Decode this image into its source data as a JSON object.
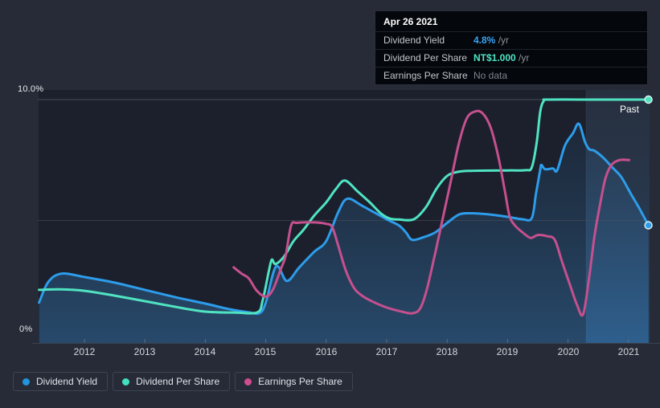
{
  "page": {
    "background": "#262b37"
  },
  "tooltip": {
    "date": "Apr 26 2021",
    "rows": [
      {
        "label": "Dividend Yield",
        "value": "4.8%",
        "suffix": " /yr",
        "color": "#3aa4f6"
      },
      {
        "label": "Dividend Per Share",
        "value": "NT$1.000",
        "suffix": " /yr",
        "color": "#4fe4c5"
      },
      {
        "label": "Earnings Per Share",
        "value": "No data",
        "suffix": "",
        "color": "#7e848e"
      }
    ]
  },
  "legend": {
    "items": [
      {
        "label": "Dividend Yield",
        "color": "#2196dd"
      },
      {
        "label": "Dividend Per Share",
        "color": "#43dfc0"
      },
      {
        "label": "Earnings Per Share",
        "color": "#cf4d8e"
      }
    ]
  },
  "chart_data": {
    "type": "line",
    "y_axis": {
      "min": 0,
      "max": 10,
      "max_label": "10.0%",
      "min_label": "0%",
      "unit": "percent",
      "gridlines_at": [
        5,
        10
      ]
    },
    "x_axis": {
      "unit": "year",
      "ticks": [
        2012,
        2013,
        2014,
        2015,
        2016,
        2017,
        2018,
        2019,
        2020,
        2021
      ]
    },
    "x_tick_labels": [
      "2012",
      "2013",
      "2014",
      "2015",
      "2016",
      "2017",
      "2018",
      "2019",
      "2020",
      "2021"
    ],
    "x_range": [
      2011.25,
      2021.33
    ],
    "past_label": "Past",
    "past_region_start_year": 2020.3,
    "legend_position": "bottom-left",
    "note": "All series plotted on shared 0-10% axis; Dividend Per Share scaled so 10% = NT$1.000/yr",
    "series": [
      {
        "id": "dividend-yield",
        "name": "Dividend Yield",
        "color": "#2d9cea",
        "end_dot": true,
        "end_value_label": "4.8% /yr",
        "points": [
          [
            2011.25,
            1.6
          ],
          [
            2011.4,
            2.45
          ],
          [
            2011.62,
            2.8
          ],
          [
            2012,
            2.66
          ],
          [
            2012.5,
            2.43
          ],
          [
            2013,
            2.13
          ],
          [
            2013.5,
            1.83
          ],
          [
            2014,
            1.56
          ],
          [
            2014.4,
            1.33
          ],
          [
            2014.72,
            1.2
          ],
          [
            2014.9,
            1.17
          ],
          [
            2015.0,
            1.6
          ],
          [
            2015.17,
            3.1
          ],
          [
            2015.35,
            2.5
          ],
          [
            2015.55,
            3.05
          ],
          [
            2015.8,
            3.7
          ],
          [
            2016,
            4.15
          ],
          [
            2016.2,
            5.35
          ],
          [
            2016.35,
            5.9
          ],
          [
            2016.6,
            5.6
          ],
          [
            2017,
            5.05
          ],
          [
            2017.2,
            4.8
          ],
          [
            2017.32,
            4.5
          ],
          [
            2017.42,
            4.2
          ],
          [
            2017.6,
            4.3
          ],
          [
            2017.8,
            4.5
          ],
          [
            2018,
            4.9
          ],
          [
            2018.2,
            5.25
          ],
          [
            2018.4,
            5.3
          ],
          [
            2018.7,
            5.25
          ],
          [
            2019,
            5.15
          ],
          [
            2019.25,
            5.05
          ],
          [
            2019.4,
            5.1
          ],
          [
            2019.47,
            6.1
          ],
          [
            2019.54,
            7.1
          ],
          [
            2019.56,
            7.3
          ],
          [
            2019.62,
            7.12
          ],
          [
            2019.75,
            7.15
          ],
          [
            2019.82,
            7.08
          ],
          [
            2019.95,
            8.1
          ],
          [
            2020.08,
            8.6
          ],
          [
            2020.18,
            9.0
          ],
          [
            2020.28,
            8.25
          ],
          [
            2020.35,
            7.95
          ],
          [
            2020.44,
            7.88
          ],
          [
            2020.58,
            7.6
          ],
          [
            2020.75,
            7.15
          ],
          [
            2020.88,
            6.8
          ],
          [
            2021.05,
            6.05
          ],
          [
            2021.18,
            5.5
          ],
          [
            2021.33,
            4.8
          ]
        ]
      },
      {
        "id": "dividend-per-share",
        "name": "Dividend Per Share",
        "color": "#50e3c2",
        "end_dot": true,
        "end_value_label": "NT$1.000 /yr",
        "points": [
          [
            2011.25,
            2.13
          ],
          [
            2011.6,
            2.15
          ],
          [
            2012,
            2.09
          ],
          [
            2012.5,
            1.89
          ],
          [
            2013,
            1.66
          ],
          [
            2013.5,
            1.43
          ],
          [
            2014,
            1.23
          ],
          [
            2014.5,
            1.19
          ],
          [
            2014.86,
            1.2
          ],
          [
            2014.95,
            1.7
          ],
          [
            2015.05,
            2.9
          ],
          [
            2015.1,
            3.38
          ],
          [
            2015.16,
            3.2
          ],
          [
            2015.3,
            3.5
          ],
          [
            2015.46,
            4.15
          ],
          [
            2015.62,
            4.6
          ],
          [
            2015.8,
            5.2
          ],
          [
            2016,
            5.75
          ],
          [
            2016.16,
            6.3
          ],
          [
            2016.31,
            6.65
          ],
          [
            2016.52,
            6.2
          ],
          [
            2016.72,
            5.75
          ],
          [
            2016.9,
            5.3
          ],
          [
            2017.05,
            5.08
          ],
          [
            2017.2,
            5.04
          ],
          [
            2017.45,
            5.05
          ],
          [
            2017.65,
            5.55
          ],
          [
            2017.82,
            6.3
          ],
          [
            2017.98,
            6.8
          ],
          [
            2018.12,
            6.98
          ],
          [
            2018.35,
            7.05
          ],
          [
            2019,
            7.07
          ],
          [
            2019.3,
            7.08
          ],
          [
            2019.4,
            7.2
          ],
          [
            2019.48,
            8.2
          ],
          [
            2019.54,
            9.5
          ],
          [
            2019.6,
            9.95
          ],
          [
            2019.68,
            10.0
          ],
          [
            2020.5,
            10.0
          ],
          [
            2021.33,
            10.0
          ]
        ]
      },
      {
        "id": "earnings-per-share",
        "name": "Earnings Per Share",
        "color": "#c6508e",
        "end_dot": false,
        "end_value_label": "No data",
        "points": [
          [
            2014.47,
            3.06
          ],
          [
            2014.6,
            2.8
          ],
          [
            2014.72,
            2.6
          ],
          [
            2014.85,
            2.1
          ],
          [
            2015.0,
            1.85
          ],
          [
            2015.12,
            2.15
          ],
          [
            2015.25,
            3.0
          ],
          [
            2015.33,
            3.55
          ],
          [
            2015.42,
            4.8
          ],
          [
            2015.52,
            4.9
          ],
          [
            2015.8,
            4.92
          ],
          [
            2016.0,
            4.86
          ],
          [
            2016.1,
            4.72
          ],
          [
            2016.2,
            3.95
          ],
          [
            2016.32,
            2.95
          ],
          [
            2016.45,
            2.25
          ],
          [
            2016.56,
            1.95
          ],
          [
            2016.72,
            1.7
          ],
          [
            2017.0,
            1.4
          ],
          [
            2017.25,
            1.23
          ],
          [
            2017.42,
            1.16
          ],
          [
            2017.55,
            1.35
          ],
          [
            2017.66,
            2.1
          ],
          [
            2017.79,
            3.5
          ],
          [
            2017.92,
            5.0
          ],
          [
            2018.05,
            6.5
          ],
          [
            2018.19,
            8.15
          ],
          [
            2018.32,
            9.2
          ],
          [
            2018.45,
            9.5
          ],
          [
            2018.58,
            9.45
          ],
          [
            2018.72,
            8.85
          ],
          [
            2018.85,
            7.6
          ],
          [
            2018.96,
            6.15
          ],
          [
            2019.03,
            5.2
          ],
          [
            2019.12,
            4.8
          ],
          [
            2019.25,
            4.5
          ],
          [
            2019.38,
            4.28
          ],
          [
            2019.5,
            4.4
          ],
          [
            2019.65,
            4.35
          ],
          [
            2019.78,
            4.2
          ],
          [
            2019.9,
            3.3
          ],
          [
            2020.05,
            2.2
          ],
          [
            2020.15,
            1.5
          ],
          [
            2020.25,
            1.12
          ],
          [
            2020.35,
            2.65
          ],
          [
            2020.44,
            4.4
          ],
          [
            2020.54,
            5.8
          ],
          [
            2020.62,
            6.75
          ],
          [
            2020.72,
            7.3
          ],
          [
            2020.85,
            7.5
          ],
          [
            2021.01,
            7.5
          ]
        ]
      }
    ]
  }
}
